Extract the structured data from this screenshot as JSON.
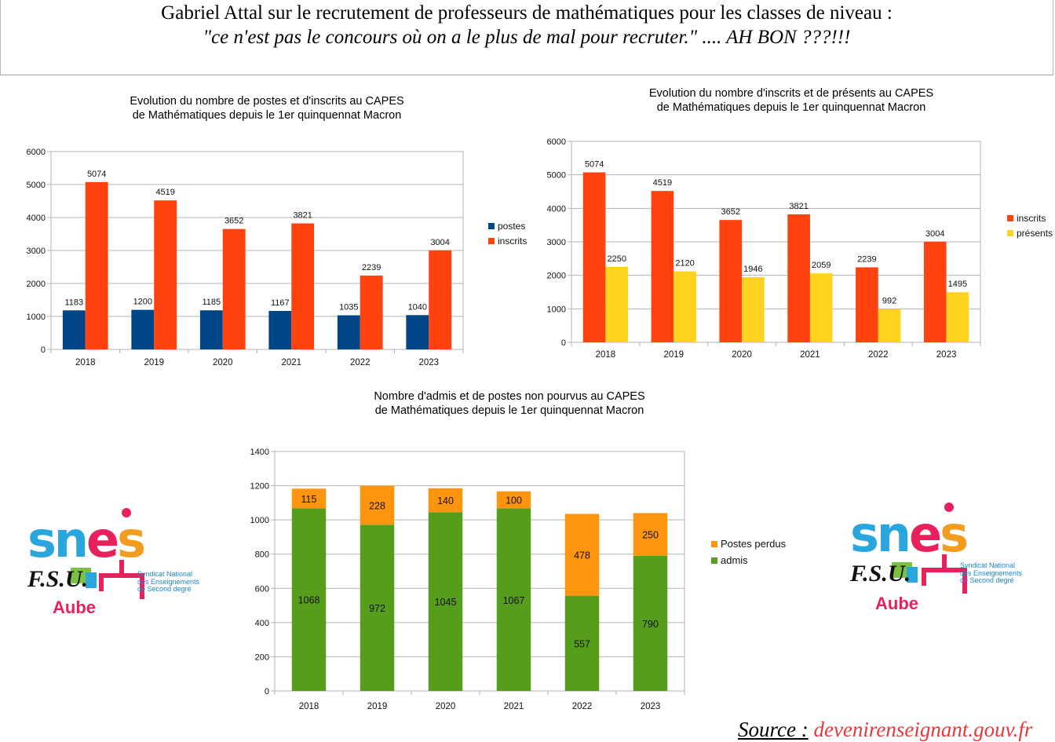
{
  "header": {
    "line1": "Gabriel Attal sur le recrutement de professeurs de mathématiques pour les classes de niveau :",
    "line2": "\"ce n'est pas le concours où on a le plus de mal pour recruter.\" .... AH BON ???!!!"
  },
  "chart_data": [
    {
      "type": "bar",
      "title": [
        "Evolution du nombre de postes et d'inscrits au CAPES",
        "de Mathématiques depuis le 1er quinquennat Macron"
      ],
      "categories": [
        "2018",
        "2019",
        "2020",
        "2021",
        "2022",
        "2023"
      ],
      "ylim": [
        0,
        6000
      ],
      "yticks": [
        0,
        1000,
        2000,
        3000,
        4000,
        5000,
        6000
      ],
      "grid": true,
      "legend_position": "right",
      "series": [
        {
          "name": "postes",
          "color": "#004586",
          "values": [
            1183,
            1200,
            1185,
            1167,
            1035,
            1040
          ]
        },
        {
          "name": "inscrits",
          "color": "#ff420e",
          "values": [
            5074,
            4519,
            3652,
            3821,
            2239,
            3004
          ]
        }
      ]
    },
    {
      "type": "bar",
      "title": [
        "Evolution du nombre d'inscrits et de présents au CAPES",
        "de Mathématiques depuis le 1er quinquennat Macron"
      ],
      "categories": [
        "2018",
        "2019",
        "2020",
        "2021",
        "2022",
        "2023"
      ],
      "ylim": [
        0,
        6000
      ],
      "yticks": [
        0,
        1000,
        2000,
        3000,
        4000,
        5000,
        6000
      ],
      "grid": true,
      "legend_position": "right",
      "series": [
        {
          "name": "inscrits",
          "color": "#ff420e",
          "values": [
            5074,
            4519,
            3652,
            3821,
            2239,
            3004
          ]
        },
        {
          "name": "présents",
          "color": "#ffd320",
          "values": [
            2250,
            2120,
            1946,
            2059,
            992,
            1495
          ]
        }
      ]
    },
    {
      "type": "bar",
      "stacked": true,
      "title": [
        "Nombre d'admis et de postes non pourvus au CAPES",
        "de Mathématiques depuis le 1er quinquennat Macron"
      ],
      "categories": [
        "2018",
        "2019",
        "2020",
        "2021",
        "2022",
        "2023"
      ],
      "ylim": [
        0,
        1400
      ],
      "yticks": [
        0,
        200,
        400,
        600,
        800,
        1000,
        1200,
        1400
      ],
      "grid": true,
      "legend_position": "right",
      "series": [
        {
          "name": "admis",
          "color": "#579d1c",
          "values": [
            1068,
            972,
            1045,
            1067,
            557,
            790
          ]
        },
        {
          "name": "Postes perdus",
          "color": "#ff950e",
          "values": [
            115,
            228,
            140,
            100,
            478,
            250
          ]
        }
      ]
    }
  ],
  "logos": {
    "sn": "sn",
    "e": "e",
    "s": "s",
    "fsu": "F.S.U.",
    "subtitle": [
      "Syndicat National",
      "des Enseignements",
      "de Second degré"
    ],
    "aube": "Aube"
  },
  "source": {
    "label": "Source :",
    "link": "devenirenseignant.gouv.fr"
  }
}
